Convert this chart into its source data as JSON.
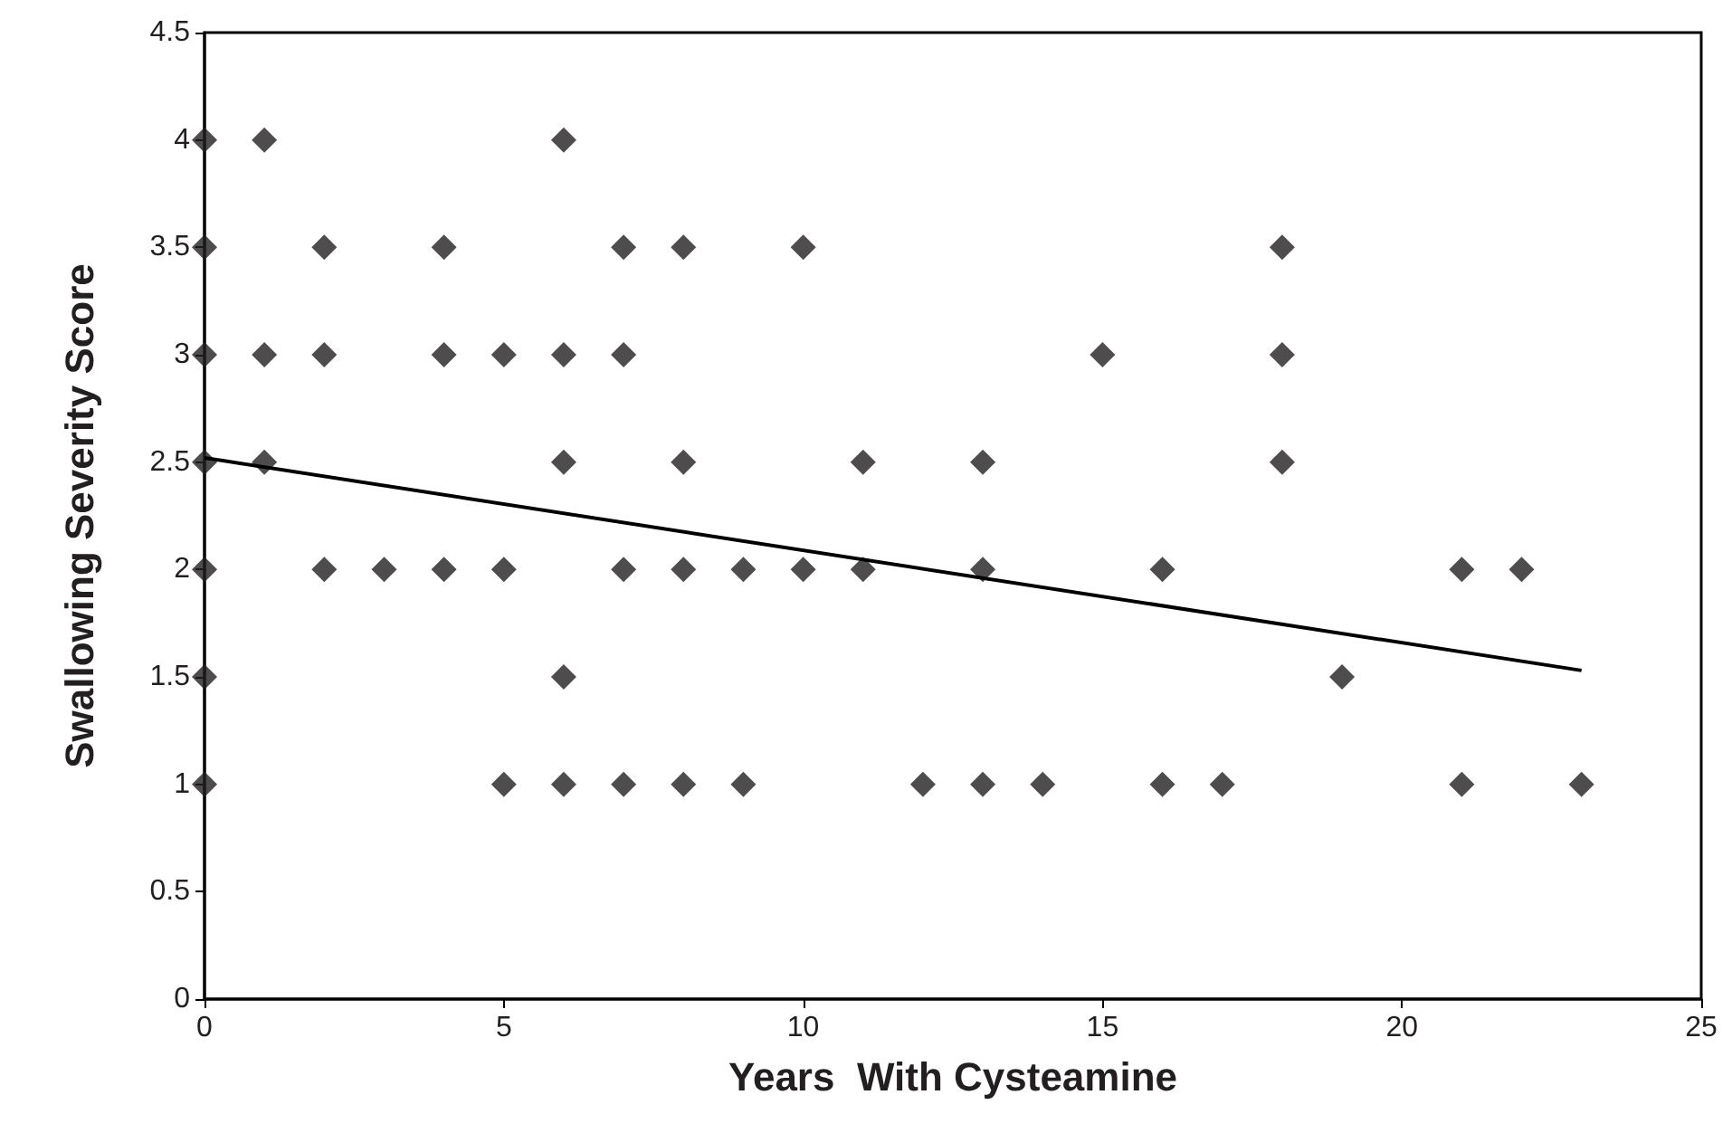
{
  "chart_data": {
    "type": "scatter",
    "xlabel": "Years  With Cysteamine",
    "ylabel": "Swallowing Severity Score",
    "xlim": [
      0,
      25
    ],
    "xticks": [
      0,
      5,
      10,
      15,
      20,
      25
    ],
    "ylim": [
      0,
      4.5
    ],
    "yticks": [
      0,
      0.5,
      1,
      1.5,
      2,
      2.5,
      3,
      3.5,
      4,
      4.5
    ],
    "grid": false,
    "marker": "diamond",
    "series": [
      {
        "color": "#231f20",
        "x": [
          0,
          0,
          0,
          0,
          0,
          0,
          0,
          1,
          1,
          1,
          2,
          2,
          2,
          3,
          4,
          4,
          4,
          5,
          5,
          5,
          6,
          6,
          6,
          6,
          6,
          7,
          7,
          7,
          7,
          8,
          8,
          8,
          8,
          9,
          9,
          10,
          10,
          11,
          11,
          12,
          13,
          13,
          13,
          14,
          15,
          16,
          16,
          17,
          18,
          18,
          18,
          19,
          21,
          21,
          22,
          23
        ],
        "values": [
          4,
          3.5,
          3,
          2.5,
          2,
          1.5,
          1,
          4,
          3,
          2.5,
          3.5,
          3,
          2,
          2,
          3.5,
          3,
          2,
          3,
          2,
          1,
          4,
          3,
          2.5,
          1.5,
          1,
          3.5,
          3,
          2,
          1,
          3.5,
          2.5,
          2,
          1,
          2,
          1,
          3.5,
          2,
          2.5,
          2,
          1,
          2.5,
          2,
          1,
          1,
          3,
          2,
          1,
          1,
          3.5,
          3,
          2.5,
          1.5,
          2,
          1,
          2,
          1
        ]
      },
      {
        "type": "line",
        "color": "#000000",
        "marker": "none",
        "line_style": "solid",
        "x": [
          0,
          23
        ],
        "values": [
          2.52,
          1.53
        ]
      }
    ]
  }
}
